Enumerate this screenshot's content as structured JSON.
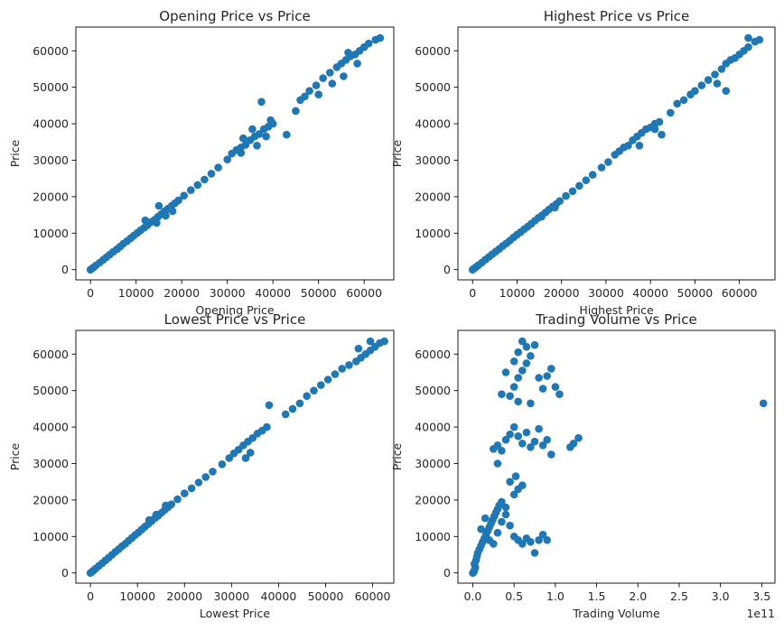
{
  "chart_data": [
    {
      "type": "scatter",
      "title": "Opening Price vs Price",
      "xlabel": "Opening Price",
      "ylabel": "Price",
      "xlim": [
        -3200,
        66500
      ],
      "ylim": [
        -2800,
        66500
      ],
      "xticks": [
        0,
        10000,
        20000,
        30000,
        40000,
        50000,
        60000
      ],
      "yticks": [
        0,
        10000,
        20000,
        30000,
        40000,
        50000,
        60000
      ],
      "color": "#1f77b4",
      "points": [
        [
          0,
          0
        ],
        [
          300,
          280
        ],
        [
          700,
          650
        ],
        [
          1200,
          1150
        ],
        [
          2000,
          1900
        ],
        [
          2800,
          2700
        ],
        [
          3500,
          3400
        ],
        [
          4200,
          4100
        ],
        [
          5000,
          4900
        ],
        [
          5800,
          5600
        ],
        [
          6500,
          6300
        ],
        [
          7200,
          7100
        ],
        [
          8000,
          7800
        ],
        [
          8800,
          8600
        ],
        [
          9500,
          9300
        ],
        [
          10300,
          10100
        ],
        [
          11000,
          10800
        ],
        [
          11800,
          11500
        ],
        [
          12500,
          12200
        ],
        [
          13200,
          13000
        ],
        [
          14000,
          13600
        ],
        [
          14800,
          14500
        ],
        [
          15500,
          15200
        ],
        [
          16200,
          16000
        ],
        [
          17000,
          16700
        ],
        [
          17800,
          17500
        ],
        [
          18500,
          18200
        ],
        [
          19300,
          19000
        ],
        [
          20500,
          20300
        ],
        [
          22000,
          21800
        ],
        [
          23500,
          23200
        ],
        [
          25000,
          24700
        ],
        [
          26500,
          26300
        ],
        [
          28000,
          28000
        ],
        [
          30000,
          30200
        ],
        [
          31000,
          31800
        ],
        [
          32000,
          32800
        ],
        [
          33000,
          33500
        ],
        [
          34000,
          34200
        ],
        [
          35000,
          35500
        ],
        [
          36000,
          36500
        ],
        [
          37000,
          37200
        ],
        [
          38000,
          38500
        ],
        [
          39000,
          39200
        ],
        [
          40000,
          40000
        ],
        [
          37500,
          46000
        ],
        [
          43000,
          37000
        ],
        [
          46000,
          46500
        ],
        [
          47000,
          47500
        ],
        [
          48000,
          49000
        ],
        [
          49500,
          50500
        ],
        [
          51000,
          52500
        ],
        [
          52500,
          54000
        ],
        [
          54000,
          55500
        ],
        [
          55000,
          56500
        ],
        [
          56000,
          57500
        ],
        [
          57000,
          58500
        ],
        [
          58000,
          59000
        ],
        [
          59000,
          60000
        ],
        [
          60000,
          61000
        ],
        [
          61000,
          62000
        ],
        [
          62500,
          63000
        ],
        [
          63500,
          63500
        ],
        [
          50000,
          48000
        ],
        [
          55500,
          53000
        ],
        [
          53000,
          51000
        ],
        [
          33500,
          36000
        ],
        [
          36500,
          34000
        ],
        [
          38500,
          36500
        ],
        [
          35500,
          38500
        ],
        [
          39500,
          41000
        ],
        [
          15000,
          17500
        ],
        [
          16500,
          14800
        ],
        [
          18000,
          16000
        ],
        [
          12000,
          13500
        ],
        [
          14500,
          12800
        ],
        [
          58500,
          56500
        ],
        [
          56500,
          59500
        ],
        [
          45000,
          43500
        ],
        [
          33000,
          32000
        ]
      ]
    },
    {
      "type": "scatter",
      "title": "Highest Price vs Price",
      "xlabel": "Highest Price",
      "ylabel": "Price",
      "xlim": [
        -3300,
        68000
      ],
      "ylim": [
        -2800,
        66500
      ],
      "xticks": [
        0,
        10000,
        20000,
        30000,
        40000,
        50000,
        60000
      ],
      "yticks": [
        0,
        10000,
        20000,
        30000,
        40000,
        50000,
        60000
      ],
      "color": "#1f77b4",
      "points": [
        [
          0,
          0
        ],
        [
          300,
          280
        ],
        [
          700,
          650
        ],
        [
          1300,
          1200
        ],
        [
          2100,
          1950
        ],
        [
          2900,
          2750
        ],
        [
          3700,
          3500
        ],
        [
          4400,
          4200
        ],
        [
          5200,
          4950
        ],
        [
          6000,
          5700
        ],
        [
          6800,
          6500
        ],
        [
          7600,
          7200
        ],
        [
          8400,
          8000
        ],
        [
          9200,
          8800
        ],
        [
          10000,
          9600
        ],
        [
          10800,
          10300
        ],
        [
          11600,
          11100
        ],
        [
          12400,
          11800
        ],
        [
          13200,
          12600
        ],
        [
          14000,
          13400
        ],
        [
          14800,
          14200
        ],
        [
          15600,
          14900
        ],
        [
          16400,
          15700
        ],
        [
          17200,
          16500
        ],
        [
          18000,
          17300
        ],
        [
          18800,
          18000
        ],
        [
          19600,
          18800
        ],
        [
          21000,
          20200
        ],
        [
          22500,
          21500
        ],
        [
          24000,
          23000
        ],
        [
          25500,
          24500
        ],
        [
          27000,
          26000
        ],
        [
          29000,
          28000
        ],
        [
          30500,
          29500
        ],
        [
          32000,
          31500
        ],
        [
          33000,
          32500
        ],
        [
          34000,
          33500
        ],
        [
          35000,
          34000
        ],
        [
          36000,
          35500
        ],
        [
          37000,
          36500
        ],
        [
          38000,
          37500
        ],
        [
          39000,
          38500
        ],
        [
          40000,
          39000
        ],
        [
          41000,
          40000
        ],
        [
          42000,
          40500
        ],
        [
          42500,
          37000
        ],
        [
          44500,
          43000
        ],
        [
          46000,
          45500
        ],
        [
          47500,
          46500
        ],
        [
          49000,
          48000
        ],
        [
          50000,
          49000
        ],
        [
          51500,
          50500
        ],
        [
          53000,
          52000
        ],
        [
          54500,
          53500
        ],
        [
          56000,
          55000
        ],
        [
          57000,
          56500
        ],
        [
          58000,
          57500
        ],
        [
          59000,
          58000
        ],
        [
          60000,
          59000
        ],
        [
          61000,
          60000
        ],
        [
          62000,
          61000
        ],
        [
          63500,
          62500
        ],
        [
          64500,
          63000
        ],
        [
          57000,
          49000
        ],
        [
          55000,
          51000
        ],
        [
          62000,
          63500
        ],
        [
          37500,
          34000
        ],
        [
          41000,
          38500
        ],
        [
          15500,
          14500
        ],
        [
          18500,
          17000
        ]
      ]
    },
    {
      "type": "scatter",
      "title": "Lowest Price vs Price",
      "xlabel": "Lowest Price",
      "ylabel": "Price",
      "xlim": [
        -3100,
        64500
      ],
      "ylim": [
        -2800,
        66500
      ],
      "xticks": [
        0,
        10000,
        20000,
        30000,
        40000,
        50000,
        60000
      ],
      "yticks": [
        0,
        10000,
        20000,
        30000,
        40000,
        50000,
        60000
      ],
      "color": "#1f77b4",
      "points": [
        [
          0,
          0
        ],
        [
          300,
          320
        ],
        [
          650,
          700
        ],
        [
          1100,
          1200
        ],
        [
          1800,
          1950
        ],
        [
          2500,
          2700
        ],
        [
          3200,
          3450
        ],
        [
          3900,
          4200
        ],
        [
          4600,
          5000
        ],
        [
          5300,
          5800
        ],
        [
          6000,
          6500
        ],
        [
          6700,
          7300
        ],
        [
          7400,
          8000
        ],
        [
          8100,
          8800
        ],
        [
          8800,
          9600
        ],
        [
          9500,
          10400
        ],
        [
          10200,
          11100
        ],
        [
          10900,
          11900
        ],
        [
          11600,
          12700
        ],
        [
          12300,
          13400
        ],
        [
          13000,
          14200
        ],
        [
          13700,
          15000
        ],
        [
          14400,
          15700
        ],
        [
          15100,
          16500
        ],
        [
          15800,
          17300
        ],
        [
          16500,
          18000
        ],
        [
          17200,
          18800
        ],
        [
          18500,
          20200
        ],
        [
          20000,
          21800
        ],
        [
          21500,
          23200
        ],
        [
          23000,
          24800
        ],
        [
          24500,
          26300
        ],
        [
          26000,
          27800
        ],
        [
          28000,
          29800
        ],
        [
          29500,
          31500
        ],
        [
          30500,
          32800
        ],
        [
          31500,
          33800
        ],
        [
          32500,
          35000
        ],
        [
          33500,
          36000
        ],
        [
          34500,
          37000
        ],
        [
          35500,
          38200
        ],
        [
          36500,
          39000
        ],
        [
          37500,
          40000
        ],
        [
          38000,
          46000
        ],
        [
          41500,
          43500
        ],
        [
          43000,
          45000
        ],
        [
          44500,
          46500
        ],
        [
          46000,
          48500
        ],
        [
          47500,
          50000
        ],
        [
          49000,
          51500
        ],
        [
          50500,
          53000
        ],
        [
          52000,
          54500
        ],
        [
          53500,
          56000
        ],
        [
          55000,
          57000
        ],
        [
          56500,
          58000
        ],
        [
          57500,
          59000
        ],
        [
          58500,
          60000
        ],
        [
          59500,
          61000
        ],
        [
          60500,
          62000
        ],
        [
          61500,
          63000
        ],
        [
          62500,
          63500
        ],
        [
          59500,
          63500
        ],
        [
          57000,
          61500
        ],
        [
          33000,
          31500
        ],
        [
          34000,
          33000
        ],
        [
          16000,
          18500
        ],
        [
          14000,
          16000
        ],
        [
          12500,
          14500
        ]
      ]
    },
    {
      "type": "scatter",
      "title": "Trading Volume vs Price",
      "xlabel": "Trading Volume",
      "ylabel": "Price",
      "x_offset_label": "1e11",
      "xlim": [
        -0.18,
        3.66
      ],
      "ylim": [
        -2800,
        66500
      ],
      "xticks": [
        0.0,
        0.5,
        1.0,
        1.5,
        2.0,
        2.5,
        3.0,
        3.5
      ],
      "xtick_labels": [
        "0.0",
        "0.5",
        "1.0",
        "1.5",
        "2.0",
        "2.5",
        "3.0",
        "3.5"
      ],
      "yticks": [
        0,
        10000,
        20000,
        30000,
        40000,
        50000,
        60000
      ],
      "color": "#1f77b4",
      "points": [
        [
          0.0,
          0
        ],
        [
          0.01,
          200
        ],
        [
          0.02,
          800
        ],
        [
          0.03,
          1500
        ],
        [
          0.02,
          2500
        ],
        [
          0.04,
          3500
        ],
        [
          0.05,
          4500
        ],
        [
          0.06,
          5500
        ],
        [
          0.08,
          6500
        ],
        [
          0.1,
          7500
        ],
        [
          0.12,
          8500
        ],
        [
          0.14,
          9500
        ],
        [
          0.16,
          10500
        ],
        [
          0.18,
          11500
        ],
        [
          0.2,
          12500
        ],
        [
          0.22,
          13500
        ],
        [
          0.24,
          14500
        ],
        [
          0.26,
          15500
        ],
        [
          0.28,
          16500
        ],
        [
          0.3,
          17500
        ],
        [
          0.32,
          18500
        ],
        [
          0.35,
          19500
        ],
        [
          0.1,
          12000
        ],
        [
          0.15,
          15000
        ],
        [
          0.2,
          9000
        ],
        [
          0.25,
          8000
        ],
        [
          0.3,
          11000
        ],
        [
          0.35,
          14000
        ],
        [
          0.4,
          16000
        ],
        [
          0.45,
          13000
        ],
        [
          0.5,
          10000
        ],
        [
          0.55,
          9000
        ],
        [
          0.6,
          8000
        ],
        [
          0.65,
          9500
        ],
        [
          0.7,
          8500
        ],
        [
          0.75,
          5500
        ],
        [
          0.8,
          9000
        ],
        [
          0.85,
          10500
        ],
        [
          0.9,
          9000
        ],
        [
          0.4,
          18000
        ],
        [
          0.5,
          21500
        ],
        [
          0.55,
          23000
        ],
        [
          0.45,
          25000
        ],
        [
          0.52,
          26500
        ],
        [
          0.6,
          24000
        ],
        [
          0.3,
          35000
        ],
        [
          0.35,
          33500
        ],
        [
          0.4,
          36500
        ],
        [
          0.45,
          38000
        ],
        [
          0.5,
          40000
        ],
        [
          0.55,
          37500
        ],
        [
          0.6,
          35500
        ],
        [
          0.65,
          38500
        ],
        [
          0.7,
          34500
        ],
        [
          0.75,
          36000
        ],
        [
          0.8,
          39500
        ],
        [
          0.85,
          35000
        ],
        [
          0.9,
          36500
        ],
        [
          0.95,
          32500
        ],
        [
          0.25,
          34000
        ],
        [
          0.3,
          30000
        ],
        [
          1.18,
          34500
        ],
        [
          1.22,
          35500
        ],
        [
          1.28,
          37000
        ],
        [
          0.45,
          48500
        ],
        [
          0.5,
          51000
        ],
        [
          0.55,
          53500
        ],
        [
          0.6,
          55500
        ],
        [
          0.65,
          57500
        ],
        [
          0.7,
          59500
        ],
        [
          0.75,
          62500
        ],
        [
          0.8,
          53500
        ],
        [
          0.85,
          50500
        ],
        [
          0.9,
          54000
        ],
        [
          0.95,
          56000
        ],
        [
          1.0,
          51000
        ],
        [
          1.05,
          49000
        ],
        [
          0.5,
          58000
        ],
        [
          0.55,
          60500
        ],
        [
          0.6,
          63500
        ],
        [
          0.65,
          62000
        ],
        [
          0.4,
          55000
        ],
        [
          0.35,
          49000
        ],
        [
          0.55,
          47000
        ],
        [
          0.7,
          46500
        ],
        [
          3.52,
          46500
        ]
      ]
    }
  ]
}
